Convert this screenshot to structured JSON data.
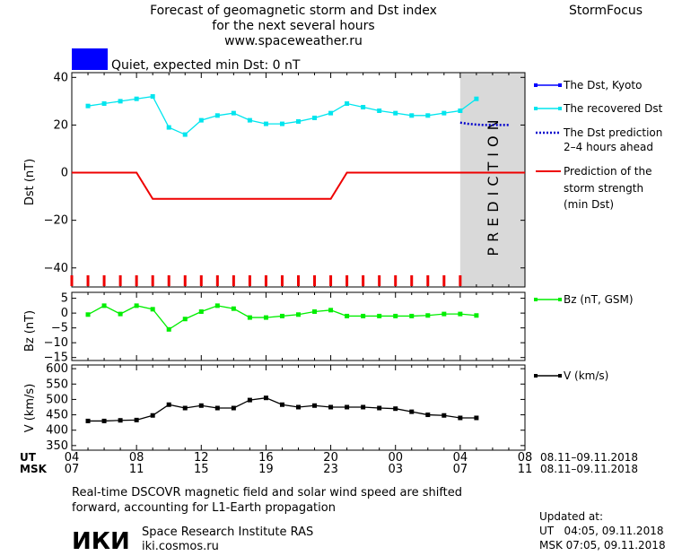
{
  "header": {
    "title_lines": [
      "Forecast of geomagnetic storm and Dst index",
      "for the next several hours",
      "www.spaceweather.ru"
    ],
    "brand": "StormFocus",
    "status_text": "Quiet, expected min Dst: 0 nT",
    "status_color": "#0000ff"
  },
  "legend": {
    "dst_kyoto": "The Dst, Kyoto",
    "dst_recovered": "The recovered Dst",
    "dst_prediction_lines": [
      "The Dst prediction",
      "2–4 hours ahead"
    ],
    "storm_lines": [
      "Prediction of the",
      "storm strength",
      "(min Dst)"
    ],
    "bz": "Bz (nT, GSM)",
    "v": "V (km/s)"
  },
  "prediction_label": "PREDICTION",
  "time_axis": {
    "ut_label": "UT",
    "msk_label": "MSK",
    "ut_ticks": [
      "04",
      "08",
      "12",
      "16",
      "20",
      "00",
      "04",
      "08"
    ],
    "msk_ticks": [
      "07",
      "11",
      "15",
      "19",
      "23",
      "03",
      "07",
      "11"
    ],
    "date_range": "08.11–09.11.2018"
  },
  "footer": {
    "note_lines": [
      "Real-time DSCOVR magnetic field and solar wind speed are shifted",
      "forward, accounting for L1-Earth propagation"
    ],
    "institute_logo": "ИКИ",
    "institute_name": "Space Research Institute RAS",
    "institute_url": "iki.cosmos.ru",
    "updated_label": "Updated at:",
    "updated_ut": "UT   04:05, 09.11.2018",
    "updated_msk": "MSK 07:05, 09.11.2018"
  },
  "chart_data": [
    {
      "type": "line",
      "ylabel": "Dst (nT)",
      "xlim": [
        4,
        32
      ],
      "ylim": [
        -48,
        42
      ],
      "yticks": [
        40,
        20,
        0,
        -20,
        -40
      ],
      "prediction_region": [
        28,
        32
      ],
      "series": [
        {
          "name": "The recovered Dst",
          "color": "#00e5ee",
          "marker": "square",
          "x": [
            5,
            6,
            7,
            8,
            9,
            10,
            11,
            12,
            13,
            14,
            15,
            16,
            17,
            18,
            19,
            20,
            21,
            22,
            23,
            24,
            25,
            26,
            27,
            28,
            29
          ],
          "y": [
            28,
            29,
            30,
            31,
            32,
            19,
            16,
            22,
            24,
            25,
            22,
            20.5,
            20.5,
            21.5,
            23,
            25,
            29,
            27.5,
            26,
            25,
            24,
            24,
            25,
            26,
            31
          ]
        },
        {
          "name": "The Dst prediction 2–4 hours ahead",
          "color": "#0000cc",
          "style": "dotted",
          "x": [
            28,
            28.5,
            29,
            29.5,
            30,
            30.5,
            31
          ],
          "y": [
            21,
            20.5,
            20.2,
            20,
            20,
            20,
            20
          ]
        },
        {
          "name": "Prediction of the storm strength (min Dst)",
          "color": "#ee0000",
          "style": "step",
          "x": [
            4,
            8,
            9,
            20,
            21,
            32
          ],
          "y": [
            0,
            0,
            -11,
            -11,
            0,
            0
          ]
        }
      ]
    },
    {
      "type": "line",
      "ylabel": "Bz (nT)",
      "xlim": [
        4,
        32
      ],
      "ylim": [
        -16,
        7
      ],
      "yticks": [
        5,
        0,
        -5,
        -10,
        -15
      ],
      "series": [
        {
          "name": "Bz (nT, GSM)",
          "color": "#00ee00",
          "marker": "square",
          "x": [
            5,
            6,
            7,
            8,
            9,
            10,
            11,
            12,
            13,
            14,
            15,
            16,
            17,
            18,
            19,
            20,
            21,
            22,
            23,
            24,
            25,
            26,
            27,
            28,
            29
          ],
          "y": [
            -0.5,
            2.5,
            -0.3,
            2.5,
            1.3,
            -5.5,
            -2,
            0.5,
            2.5,
            1.5,
            -1.5,
            -1.5,
            -1,
            -0.5,
            0.5,
            1,
            -1,
            -1,
            -1,
            -1,
            -1,
            -0.8,
            -0.3,
            -0.3,
            -0.8
          ]
        }
      ]
    },
    {
      "type": "line",
      "ylabel": "V (km/s)",
      "xlim": [
        4,
        32
      ],
      "ylim": [
        335,
        612
      ],
      "yticks": [
        600,
        550,
        500,
        450,
        400,
        350
      ],
      "series": [
        {
          "name": "V (km/s)",
          "color": "#000000",
          "marker": "square",
          "x": [
            5,
            6,
            7,
            8,
            9,
            10,
            11,
            12,
            13,
            14,
            15,
            16,
            17,
            18,
            19,
            20,
            21,
            22,
            23,
            24,
            25,
            26,
            27,
            28,
            29
          ],
          "y": [
            430,
            430,
            432,
            433,
            448,
            483,
            472,
            480,
            472,
            472,
            498,
            505,
            483,
            475,
            480,
            475,
            475,
            475,
            472,
            470,
            460,
            450,
            448,
            440,
            440
          ]
        }
      ]
    }
  ]
}
